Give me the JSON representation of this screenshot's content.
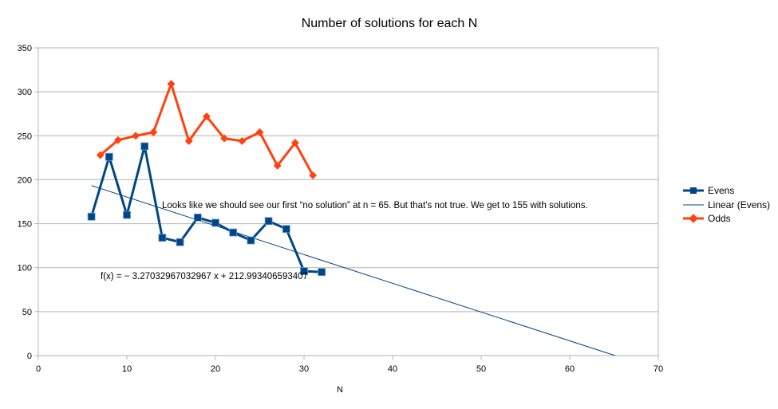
{
  "chart_data": {
    "type": "line",
    "title": "Number of solutions for each N",
    "xlabel": "N",
    "ylabel": "",
    "xlim": [
      0,
      70
    ],
    "ylim": [
      0,
      350
    ],
    "xticks": [
      0,
      10,
      20,
      30,
      40,
      50,
      60,
      70
    ],
    "yticks": [
      0,
      50,
      100,
      150,
      200,
      250,
      300,
      350
    ],
    "grid": true,
    "legend_position": "right",
    "series": [
      {
        "name": "Evens",
        "color": "#004586",
        "marker": "square",
        "x": [
          6,
          8,
          10,
          12,
          14,
          16,
          18,
          20,
          22,
          24,
          26,
          28,
          30,
          32
        ],
        "y": [
          158,
          226,
          160,
          238,
          134,
          129,
          157,
          151,
          140,
          131,
          153,
          144,
          96,
          95
        ]
      },
      {
        "name": "Odds",
        "color": "#ff420e",
        "marker": "diamond",
        "x": [
          7,
          9,
          11,
          13,
          15,
          17,
          19,
          21,
          23,
          25,
          27,
          29,
          31
        ],
        "y": [
          228,
          245,
          250,
          254,
          309,
          244,
          272,
          247,
          244,
          254,
          216,
          242,
          205
        ]
      }
    ],
    "trendline": {
      "name": "Linear (Evens)",
      "color": "#004586",
      "slope": -3.27032967032967,
      "intercept": 212.993406593407,
      "x_start": 6,
      "x_end": 65.13
    },
    "annotations": {
      "equation": "f(x) = − 3.27032967032967 x + 212.993406593407",
      "note": "Looks like we should see our first “no solution” at n = 65. But that’s not true. We get to 155 with solutions."
    }
  }
}
